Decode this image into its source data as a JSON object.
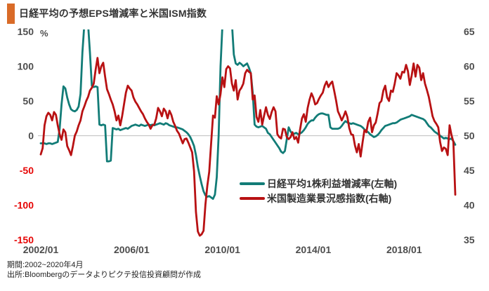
{
  "title": "日経平均の予想EPS増減率と米国ISM指数",
  "legend": {
    "series1_label": "日経平均1株利益増減率(左軸)",
    "series2_label": "米国製造業景況感指数(右軸)"
  },
  "footer": {
    "period": "期間:2002~2020年4月",
    "source": "出所:Bloombergのデータよりピクテ投信投資顧問が作成"
  },
  "colors": {
    "accent_bar": "#d96b28",
    "series1": "#127c77",
    "series2": "#b81113",
    "axis_text": "#4d4d4d",
    "negative_tick_text": "#e60505",
    "gridline": "#c8c8c8",
    "title_text": "#333333"
  },
  "chart_data": {
    "type": "line",
    "title": "日経平均の予想EPS増減率と米国ISM指数",
    "x_start": "2002/01",
    "x_end": "2020/04",
    "n_points": 220,
    "x_ticks": [
      {
        "month_index": 0,
        "label": "2002/01"
      },
      {
        "month_index": 48,
        "label": "2006/01"
      },
      {
        "month_index": 96,
        "label": "2010/01"
      },
      {
        "month_index": 144,
        "label": "2014/01"
      },
      {
        "month_index": 192,
        "label": "2018/01"
      }
    ],
    "left_axis": {
      "unit": "%",
      "min": -150,
      "max": 150,
      "ticks": [
        150,
        100,
        50,
        0,
        -50,
        -100,
        -150
      ]
    },
    "right_axis": {
      "min": 35,
      "max": 65,
      "ticks": [
        65,
        60,
        55,
        50,
        45,
        40,
        35
      ]
    },
    "gridline_at_left_value": 0,
    "legend_position": "inside-right-bottom",
    "series": [
      {
        "name": "日経平均1株利益増減率(左軸)",
        "axis": "left",
        "color": "#127c77",
        "values": [
          -11,
          -11,
          -11,
          -12,
          -11,
          -11,
          -12,
          -11,
          -10,
          -9,
          10,
          45,
          71,
          68,
          55,
          45,
          38,
          36,
          35,
          37,
          42,
          60,
          120,
          160,
          168,
          160,
          120,
          72,
          70,
          71,
          70,
          16,
          15,
          16,
          15,
          -37,
          -37,
          -36,
          11,
          10,
          9,
          10,
          8,
          9,
          10,
          11,
          10,
          12,
          14,
          15,
          16,
          15,
          14,
          16,
          15,
          14,
          15,
          16,
          15,
          16,
          15,
          16,
          17,
          18,
          17,
          16,
          18,
          17,
          15,
          14,
          13,
          12,
          12,
          11,
          10,
          9,
          7,
          5,
          2,
          -2,
          -8,
          -15,
          -28,
          -45,
          -58,
          -70,
          -80,
          -86,
          -88,
          -87,
          -89,
          -91,
          -85,
          -60,
          0,
          100,
          160,
          168,
          170,
          168,
          166,
          162,
          117,
          104,
          102,
          105,
          103,
          100,
          102,
          104,
          98,
          90,
          62,
          16,
          13,
          12,
          13,
          14,
          12,
          10,
          4,
          2,
          -2,
          -6,
          -10,
          -14,
          -18,
          -23,
          -25,
          -22,
          -5,
          12,
          6,
          2,
          3,
          4,
          2,
          3,
          5,
          8,
          12,
          17,
          20,
          22,
          22,
          26,
          29,
          31,
          32,
          32,
          31,
          30,
          30,
          12,
          10,
          10,
          10,
          10,
          11,
          14,
          18,
          21,
          19,
          18,
          17,
          18,
          17,
          16,
          15,
          14,
          12,
          9,
          7,
          5,
          2,
          0,
          -2,
          -1,
          1,
          4,
          8,
          11,
          14,
          15,
          16,
          17,
          18,
          18,
          19,
          21,
          23,
          24,
          25,
          26,
          27,
          28,
          30,
          29,
          28,
          27,
          26,
          25,
          24,
          22,
          18,
          14,
          12,
          9,
          6,
          4,
          2,
          0,
          -2,
          -4,
          -3,
          -4,
          -5,
          -4,
          -8,
          -13
        ]
      },
      {
        "name": "米国製造業景況感指数(右軸)",
        "axis": "right",
        "color": "#b81113",
        "values": [
          47.3,
          48.2,
          51.5,
          52.8,
          53.3,
          53.0,
          52.2,
          53.4,
          53.0,
          51.5,
          50.2,
          49.4,
          50.9,
          50.5,
          48.5,
          47.9,
          47.2,
          48.5,
          50.0,
          50.6,
          51.5,
          52.2,
          53.5,
          54.2,
          55.0,
          55.6,
          56.5,
          56.9,
          57.5,
          59.5,
          61.2,
          59.0,
          60.0,
          60.5,
          58.5,
          56.7,
          56.0,
          55.2,
          54.5,
          53.5,
          52.2,
          52.9,
          51.5,
          52.8,
          54.5,
          56.2,
          57.2,
          56.8,
          56.5,
          55.5,
          54.9,
          54.5,
          54.0,
          53.5,
          53.1,
          52.5,
          52.0,
          51.6,
          51.0,
          51.5,
          51.6,
          52.5,
          54.0,
          53.5,
          52.8,
          53.9,
          53.5,
          52.5,
          53.6,
          53.0,
          52.0,
          51.4,
          50.7,
          50.3,
          49.6,
          48.9,
          49.5,
          49.6,
          49.0,
          48.3,
          47.6,
          44.9,
          39.0,
          36.2,
          35.6,
          35.8,
          36.3,
          40.1,
          42.8,
          44.8,
          48.9,
          52.9,
          52.6,
          55.7,
          54.5,
          56.0,
          58.4,
          57.0,
          59.6,
          60.0,
          59.7,
          57.5,
          56.5,
          58.0,
          55.2,
          56.5,
          56.9,
          57.5,
          59.0,
          59.5,
          59.2,
          59.0,
          55.2,
          55.8,
          52.7,
          52.0,
          53.7,
          51.6,
          52.9,
          54.1,
          53.0,
          52.4,
          53.4,
          54.1,
          53.5,
          50.2,
          49.8,
          49.6,
          51.0,
          50.9,
          49.8,
          49.5,
          49.8,
          50.5,
          49.5,
          49.8,
          49.0,
          50.9,
          52.5,
          53.1,
          52.0,
          54.0,
          55.2,
          56.1,
          55.5,
          54.5,
          54.7,
          55.3,
          55.8,
          56.2,
          57.2,
          57.8,
          57.0,
          57.5,
          57.8,
          56.5,
          55.1,
          53.5,
          52.9,
          52.2,
          52.8,
          53.5,
          52.7,
          51.1,
          50.2,
          50.1,
          48.6,
          47.6,
          48.8,
          47.0,
          49.0,
          50.8,
          50.5,
          52.0,
          52.6,
          50.5,
          51.5,
          51.9,
          53.2,
          54.7,
          55.0,
          56.5,
          57.2,
          55.5,
          55.0,
          56.5,
          56.3,
          57.5,
          59.0,
          58.7,
          58.2,
          59.2,
          59.1,
          60.2,
          59.3,
          57.3,
          58.7,
          60.4,
          58.5,
          60.2,
          59.8,
          58.0,
          59.0,
          57.5,
          56.6,
          55.6,
          54.2,
          52.8,
          52.1,
          51.7,
          51.2,
          49.1,
          47.8,
          48.3,
          48.1,
          47.2,
          51.5,
          50.1,
          49.1,
          41.5
        ]
      }
    ]
  }
}
